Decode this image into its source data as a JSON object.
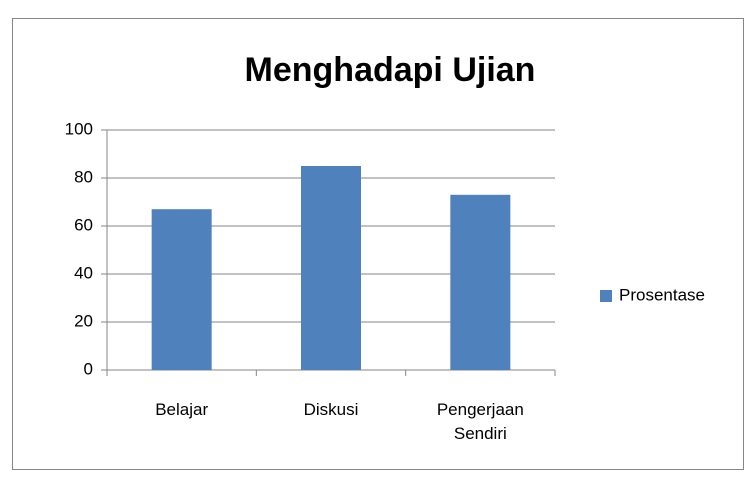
{
  "chart_data": {
    "type": "bar",
    "title": "Menghadapi Ujian",
    "categories": [
      "Belajar",
      "Diskusi",
      "Pengerjaan Sendiri"
    ],
    "series": [
      {
        "name": "Prosentase",
        "color": "#4f81bd",
        "values": [
          67,
          85,
          73
        ]
      }
    ],
    "ylim": [
      0,
      100
    ],
    "yticks": [
      0,
      20,
      40,
      60,
      80,
      100
    ],
    "grid": true,
    "legend": "right"
  }
}
